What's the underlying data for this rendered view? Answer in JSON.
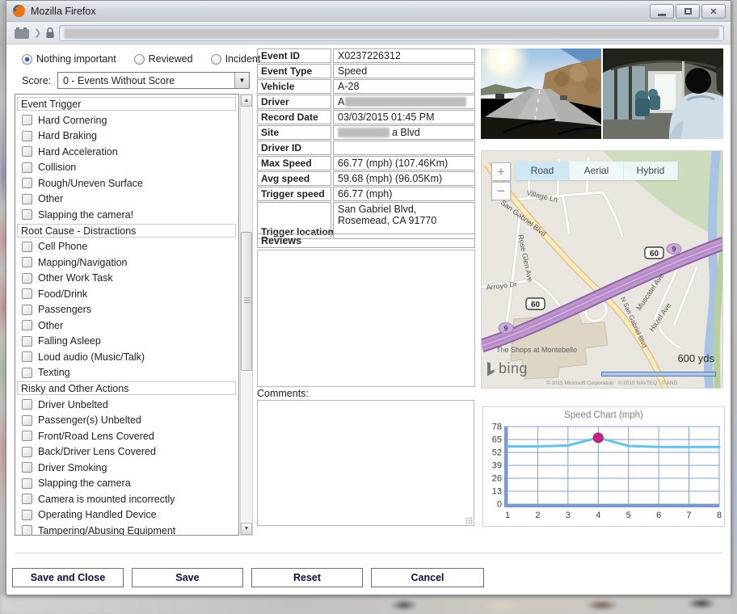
{
  "window": {
    "title": "Mozilla Firefox"
  },
  "status_options": [
    {
      "label": "Nothing important",
      "selected": true
    },
    {
      "label": "Reviewed",
      "selected": false
    },
    {
      "label": "Incident",
      "selected": false
    }
  ],
  "score": {
    "label": "Score:",
    "value": "0 - Events Without Score"
  },
  "trigger_list": {
    "groups": [
      {
        "header": "Event Trigger",
        "items": [
          "Hard Cornering",
          "Hard Braking",
          "Hard Acceleration",
          "Collision",
          "Rough/Uneven Surface",
          "Other",
          "Slapping the camera!"
        ]
      },
      {
        "header": "Root Cause - Distractions",
        "items": [
          "Cell Phone",
          "Mapping/Navigation",
          "Other Work Task",
          "Food/Drink",
          "Passengers",
          "Other",
          "Falling Asleep",
          "Loud audio (Music/Talk)",
          "Texting"
        ]
      },
      {
        "header": "Risky and Other Actions",
        "items": [
          "Driver Unbelted",
          "Passenger(s) Unbelted",
          "Front/Road Lens Covered",
          "Back/Driver Lens Covered",
          "Driver Smoking",
          "Slapping the camera",
          "Camera is mounted incorrectly",
          "Operating Handled Device",
          "Tampering/Abusing Equipment"
        ]
      }
    ]
  },
  "event_details": {
    "rows": [
      {
        "label": "Event ID",
        "value": "X0237226312"
      },
      {
        "label": "Event Type",
        "value": "Speed"
      },
      {
        "label": "Vehicle",
        "value": "A-28"
      },
      {
        "label": "Driver",
        "value": "A",
        "redact": "after"
      },
      {
        "label": "Record Date",
        "value": "03/03/2015 01:45 PM"
      },
      {
        "label": "Site",
        "value": "a Blvd",
        "redact": "before"
      },
      {
        "label": "Driver ID",
        "value": ""
      },
      {
        "label": "Max Speed",
        "value": "66.77 (mph) (107.46Km)"
      },
      {
        "label": "Avg speed",
        "value": "59.68 (mph) (96.05Km)"
      },
      {
        "label": "Trigger speed",
        "value": "66.77 (mph)"
      },
      {
        "label": "Trigger location",
        "value": "San Gabriel Blvd, Rosemead, CA 91770",
        "tall": true
      }
    ]
  },
  "reviews": {
    "header": "Reviews"
  },
  "comments": {
    "label": "Comments:",
    "value": ""
  },
  "map": {
    "buttons": [
      "Road",
      "Aerial",
      "Hybrid"
    ],
    "active_button": "Road",
    "zoom_in": "+",
    "zoom_out": "−",
    "labels": {
      "village": "Village Ln",
      "san_gabriel": "San Gabriel Blvd",
      "rose_glen": "Rose Glen Ave",
      "arroyo": "Arroyo Dr",
      "muscatel": "Muscatel Ave",
      "hazel": "Hazel Ave",
      "n_san_gabriel": "N San Gabriel Blvd",
      "shops": "The Shops at Montebello"
    },
    "shields": {
      "hwy60": "60",
      "hwy9": "9"
    },
    "scale": "600 yds",
    "logo": "bing",
    "copyright": "© 2015 Microsoft Corporation   © 2010 NAVTEQ   © AND"
  },
  "chart_data": {
    "type": "line",
    "title": "Speed Chart (mph)",
    "x": [
      1,
      2,
      3,
      4,
      5,
      6,
      7,
      8
    ],
    "values": [
      58,
      58,
      59,
      66.77,
      58.5,
      57.5,
      57.5,
      57.5
    ],
    "highlight_index": 3,
    "xlabel": "",
    "ylabel": "",
    "yticks": [
      0,
      13,
      26,
      39,
      52,
      65,
      78
    ],
    "ylim": [
      0,
      78
    ],
    "grid": true,
    "legend": false,
    "line_color": "#5fc3f2",
    "marker_color": "#cf1d86",
    "grid_color": "#7d9fd4"
  },
  "footer": {
    "buttons": [
      "Save and Close",
      "Save",
      "Reset",
      "Cancel"
    ]
  }
}
